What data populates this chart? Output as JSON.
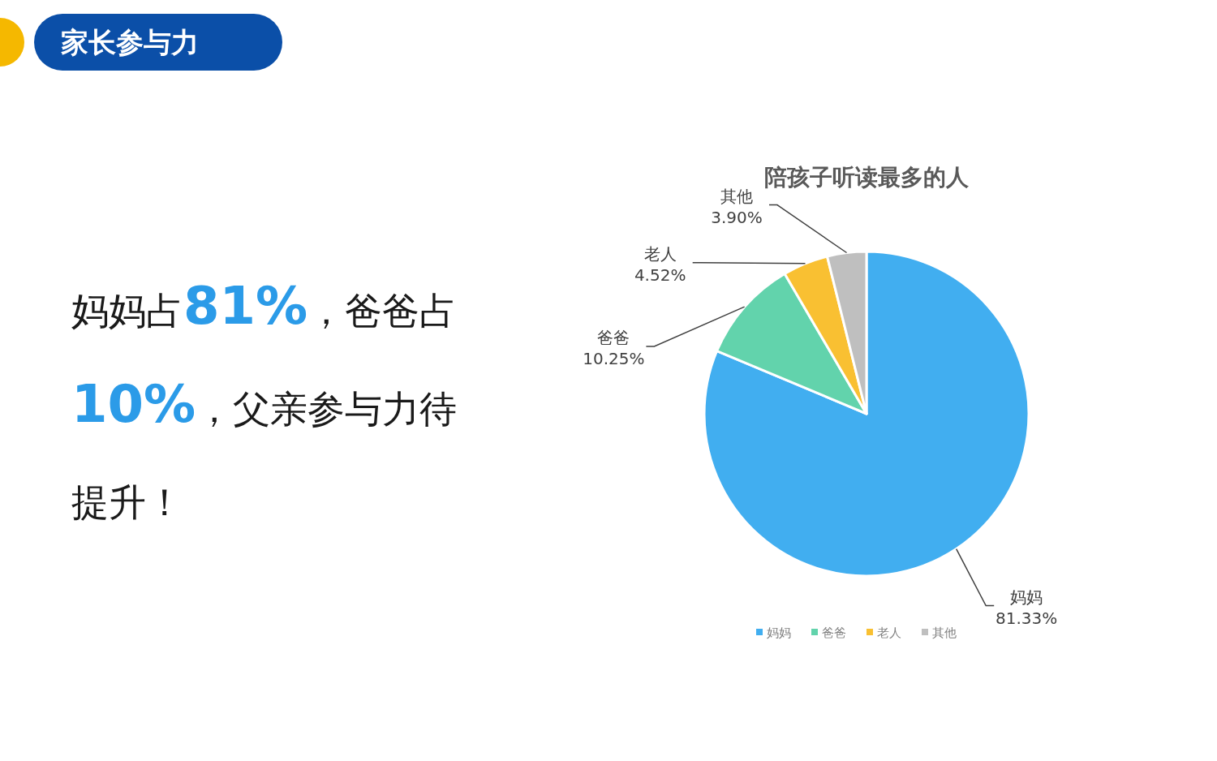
{
  "chart_data": {
    "type": "pie",
    "title": "陪孩子听读最多的人",
    "categories": [
      "妈妈",
      "爸爸",
      "老人",
      "其他"
    ],
    "values": [
      81.33,
      10.25,
      4.52,
      3.9
    ],
    "colors": [
      "#41aef0",
      "#62d3ac",
      "#f9c032",
      "#bfbfbf"
    ],
    "value_labels": [
      "81.33%",
      "10.25%",
      "4.52%",
      "3.90%"
    ],
    "legend": "bottom",
    "annotations": [
      "家长参与力",
      "妈妈占**81%**，爸爸占**10%**，父亲参与力待提升！"
    ]
  }
}
